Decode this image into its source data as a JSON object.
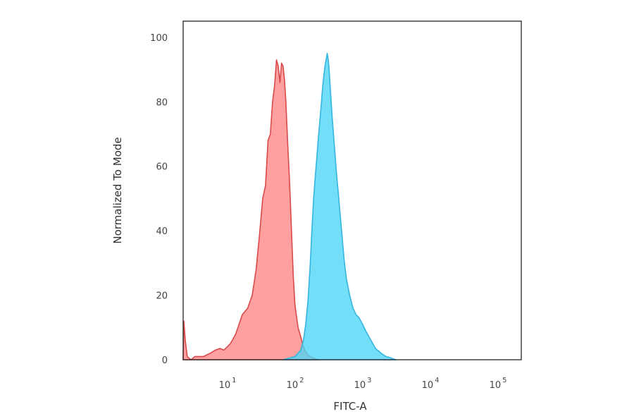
{
  "chart_data": {
    "type": "area",
    "xlabel": "FITC-A",
    "ylabel": "Normalized To Mode",
    "x_scale": "log",
    "xlim": [
      2,
      200000
    ],
    "ylim": [
      0,
      105
    ],
    "y_ticks": [
      "0",
      "20",
      "40",
      "60",
      "80",
      "100"
    ],
    "y_tick_values": [
      0,
      20,
      40,
      60,
      80,
      100
    ],
    "x_ticks": [
      {
        "value": 10,
        "base": "10",
        "exp": "1"
      },
      {
        "value": 100,
        "base": "10",
        "exp": "2"
      },
      {
        "value": 1000,
        "base": "10",
        "exp": "3"
      },
      {
        "value": 10000,
        "base": "10",
        "exp": "4"
      },
      {
        "value": 100000,
        "base": "10",
        "exp": "5"
      }
    ],
    "grid": false,
    "series": [
      {
        "fill": "#ff8f8f",
        "stroke": "#d94a4a",
        "x": [
          2,
          2.05,
          2.15,
          2.3,
          2.6,
          3,
          4,
          5,
          6,
          7,
          8,
          10,
          12,
          15,
          18,
          21,
          24,
          27,
          30,
          33,
          36,
          39,
          42,
          45,
          48,
          51,
          54,
          57,
          60,
          63,
          66,
          70,
          75,
          80,
          85,
          90,
          100,
          110,
          120,
          130,
          140,
          150,
          170,
          200
        ],
        "y": [
          0,
          12,
          6,
          1,
          0,
          1,
          1,
          2,
          3,
          3.5,
          3,
          5,
          8,
          14,
          16,
          20,
          28,
          39,
          50,
          54,
          68,
          70,
          80,
          85,
          93,
          91,
          86,
          92,
          91,
          87,
          80,
          68,
          55,
          40,
          26,
          17,
          10,
          7,
          4,
          2.5,
          1.5,
          1,
          0.5,
          0
        ]
      },
      {
        "fill": "#4fd6f5",
        "stroke": "#35b5e0",
        "x": [
          60,
          90,
          110,
          120,
          130,
          140,
          150,
          160,
          170,
          180,
          190,
          200,
          210,
          220,
          230,
          240,
          250,
          260,
          270,
          280,
          290,
          300,
          320,
          340,
          370,
          400,
          440,
          480,
          520,
          580,
          650,
          720,
          800,
          900,
          1000,
          1200,
          1400,
          1700,
          2000,
          2400,
          2800
        ],
        "y": [
          0,
          1,
          3,
          6,
          11,
          18,
          28,
          40,
          50,
          57,
          63,
          69,
          74,
          79,
          84,
          88,
          91,
          93,
          95,
          93,
          89,
          84,
          75,
          68,
          58,
          50,
          40,
          31,
          25,
          20,
          16,
          14,
          13,
          11,
          9,
          6,
          3.5,
          2,
          1,
          0.5,
          0
        ]
      }
    ]
  }
}
